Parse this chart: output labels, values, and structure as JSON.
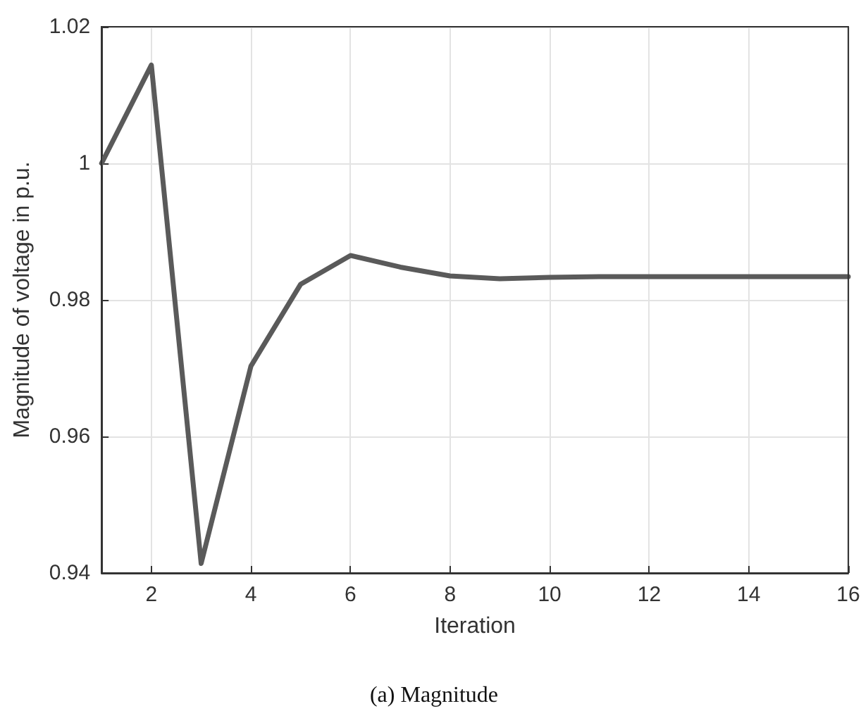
{
  "chart_data": {
    "type": "line",
    "xlabel": "Iteration",
    "ylabel": "Magnitude of voltage in p.u.",
    "annotations": [
      "(a) Magnitude"
    ],
    "x": [
      1,
      2,
      3,
      4,
      5,
      6,
      7,
      8,
      9,
      10,
      11,
      12,
      13,
      14,
      15,
      16
    ],
    "series": [
      {
        "color": "#5a5a5a",
        "values": [
          1.0,
          1.0144,
          0.9414,
          0.9703,
          0.9823,
          0.9865,
          0.9848,
          0.9835,
          0.9831,
          0.9833,
          0.9834,
          0.9834,
          0.9834,
          0.9834,
          0.9834,
          0.9834
        ]
      }
    ],
    "xlim": [
      1,
      16
    ],
    "xticks": [
      2,
      4,
      6,
      8,
      10,
      12,
      14,
      16
    ],
    "ylim": [
      0.94,
      1.02
    ],
    "yticks": [
      0.94,
      0.96,
      0.98,
      1,
      1.02
    ],
    "grid": true,
    "marker": "none",
    "line_style": "solid"
  }
}
